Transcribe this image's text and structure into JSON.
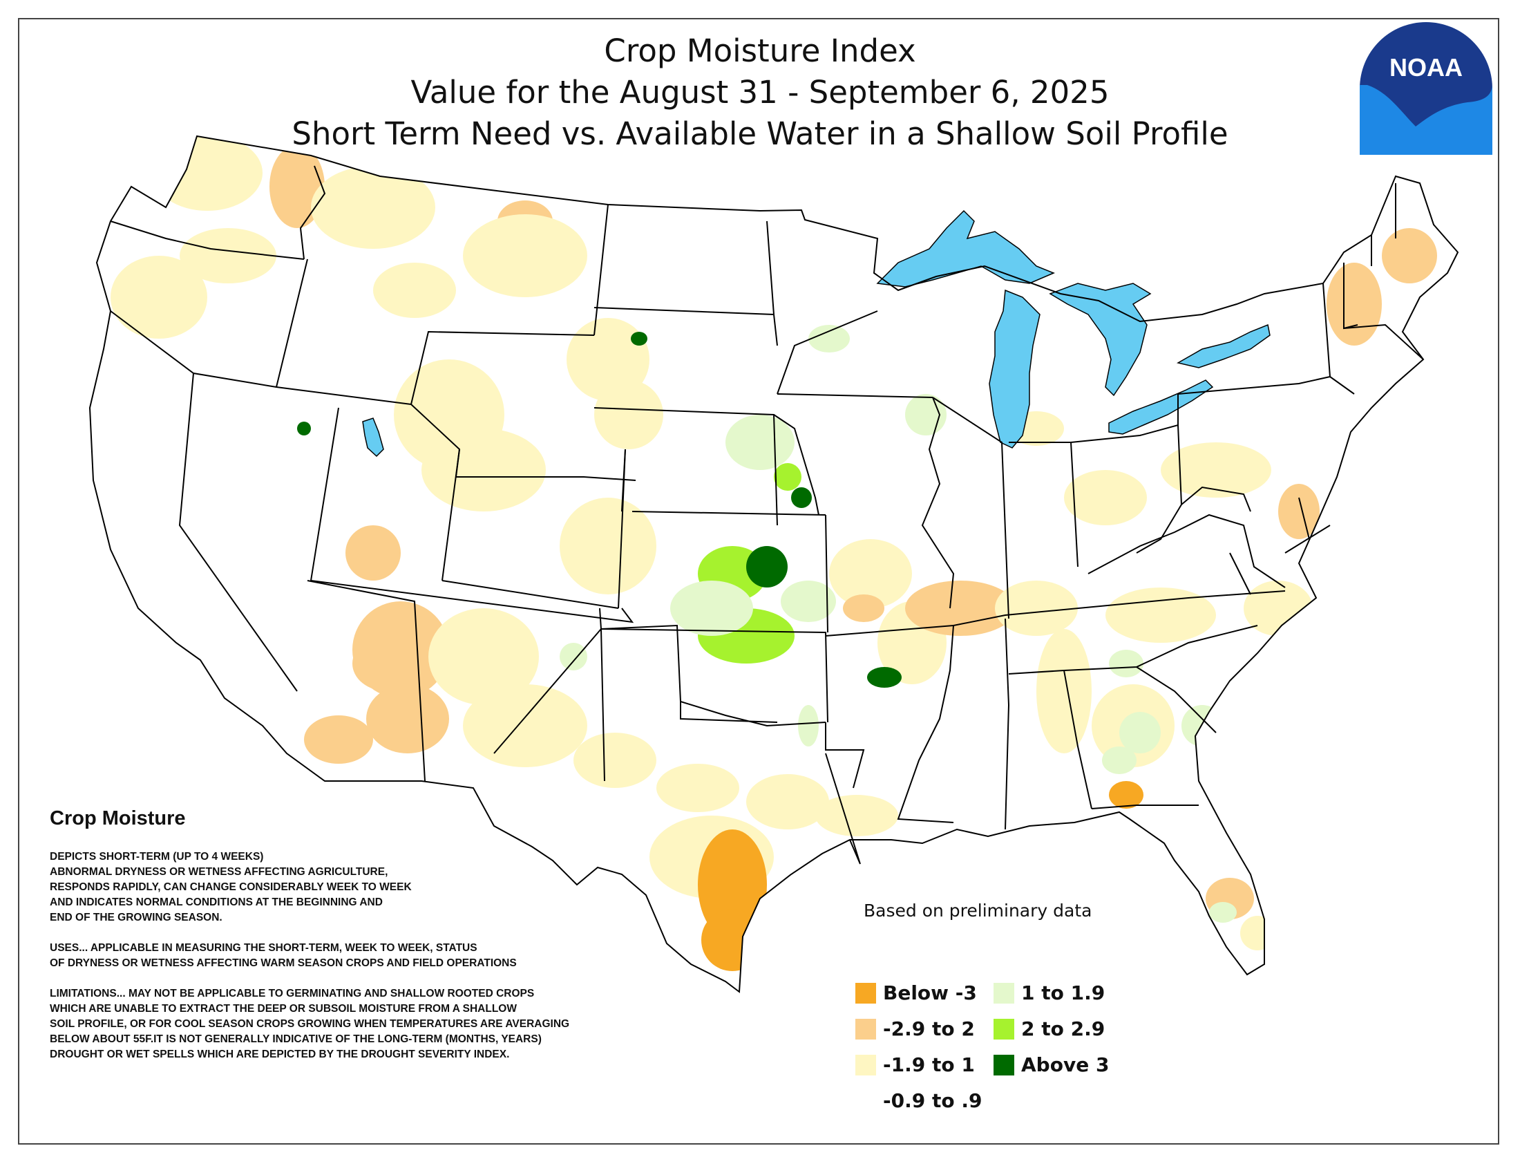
{
  "header": {
    "title_line1": "Crop Moisture Index",
    "title_line2": "Value for the August 31 - September 6, 2025",
    "title_line3": "Short Term Need vs. Available Water in a Shallow Soil Profile"
  },
  "logo": {
    "text": "NOAA",
    "colors": {
      "dark_blue": "#1a3a8c",
      "light_blue": "#1e88e5",
      "white": "#ffffff"
    }
  },
  "info": {
    "heading": "Crop Moisture",
    "depicts": "DEPICTS SHORT-TERM (UP TO 4 WEEKS)\nABNORMAL DRYNESS OR WETNESS AFFECTING AGRICULTURE,\nRESPONDS RAPIDLY, CAN CHANGE CONSIDERABLY WEEK TO WEEK\nAND INDICATES NORMAL CONDITIONS AT THE BEGINNING AND\nEND OF THE GROWING SEASON.",
    "uses": "USES... APPLICABLE IN MEASURING THE SHORT-TERM, WEEK TO WEEK, STATUS\nOF DRYNESS OR WETNESS AFFECTING WARM SEASON CROPS AND FIELD OPERATIONS",
    "limitations": "LIMITATIONS... MAY NOT BE APPLICABLE TO GERMINATING AND SHALLOW ROOTED CROPS\nWHICH ARE UNABLE TO EXTRACT THE DEEP OR SUBSOIL MOISTURE FROM A SHALLOW\nSOIL PROFILE, OR FOR COOL SEASON CROPS GROWING WHEN TEMPERATURES ARE AVERAGING\nBELOW ABOUT 55F.IT IS NOT GENERALLY INDICATIVE OF THE LONG-TERM (MONTHS, YEARS)\nDROUGHT OR WET SPELLS WHICH ARE DEPICTED BY THE DROUGHT SEVERITY INDEX."
  },
  "note": "Based on preliminary data",
  "legend": {
    "items": [
      {
        "label": "Below -3",
        "color": "#f7a823"
      },
      {
        "label": "-2.9 to 2",
        "color": "#fbcf8c"
      },
      {
        "label": "-1.9 to 1",
        "color": "#fef6c2"
      },
      {
        "label": "-0.9 to .9",
        "color": "#ffffff"
      },
      {
        "label": "1 to 1.9",
        "color": "#e4f8cc"
      },
      {
        "label": "2 to 2.9",
        "color": "#a6f22e"
      },
      {
        "label": "Above 3",
        "color": "#006a00"
      }
    ]
  },
  "map": {
    "water_color": "#66ccf2",
    "border_color": "#000000",
    "moisture_color_categories": [
      "Below -3",
      "-2.9 to 2",
      "-1.9 to 1",
      "1 to 1.9",
      "2 to 2.9",
      "Above 3"
    ]
  }
}
